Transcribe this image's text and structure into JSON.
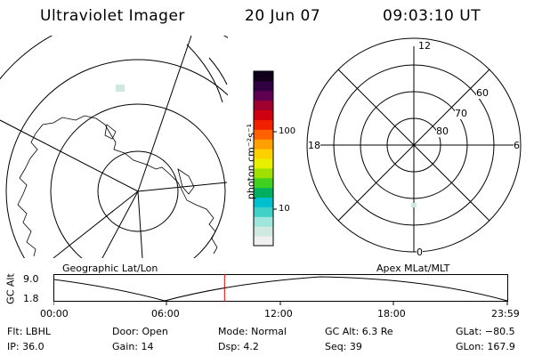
{
  "header": {
    "title": "Ultraviolet Imager",
    "date": "20 Jun 07",
    "time": "09:03:10 UT"
  },
  "maps": {
    "left_label": "Geographic Lat/Lon",
    "right_label": "Apex MLat/MLT"
  },
  "polar_grid": {
    "top": "12",
    "left": "18",
    "right": "6",
    "bottom": "0",
    "lat_labels": [
      "60",
      "70",
      "80"
    ]
  },
  "colorbar": {
    "unit_label": "photon cm⁻²s⁻¹",
    "ticks": [
      "100",
      "10"
    ],
    "colors": [
      "#f0f0f0",
      "#cfe8e0",
      "#9ee6dc",
      "#40d0c8",
      "#00c0d0",
      "#00b060",
      "#40d020",
      "#a0e000",
      "#e8f000",
      "#ffd000",
      "#ffa000",
      "#ff6000",
      "#f02000",
      "#d00010",
      "#a00030",
      "#600050",
      "#300040",
      "#10001a"
    ]
  },
  "timeline": {
    "y_axis_label": "GC Alt",
    "y_max": "9.0",
    "y_min": "1.8",
    "ticks": [
      "00:00",
      "06:00",
      "12:00",
      "18:00",
      "23:59"
    ],
    "current_hour": 9.05
  },
  "info": {
    "filter": "Flt: LBHL",
    "ip": "IP: 36.0",
    "door": "Door: Open",
    "gain": "Gain: 14",
    "mode": "Mode: Normal",
    "dsp": "Dsp:    4.2",
    "gc_alt": "GC Alt: 6.3 Re",
    "seq": "Seq: 39",
    "glat": "GLat: −80.5",
    "glon": "GLon: 167.9"
  }
}
